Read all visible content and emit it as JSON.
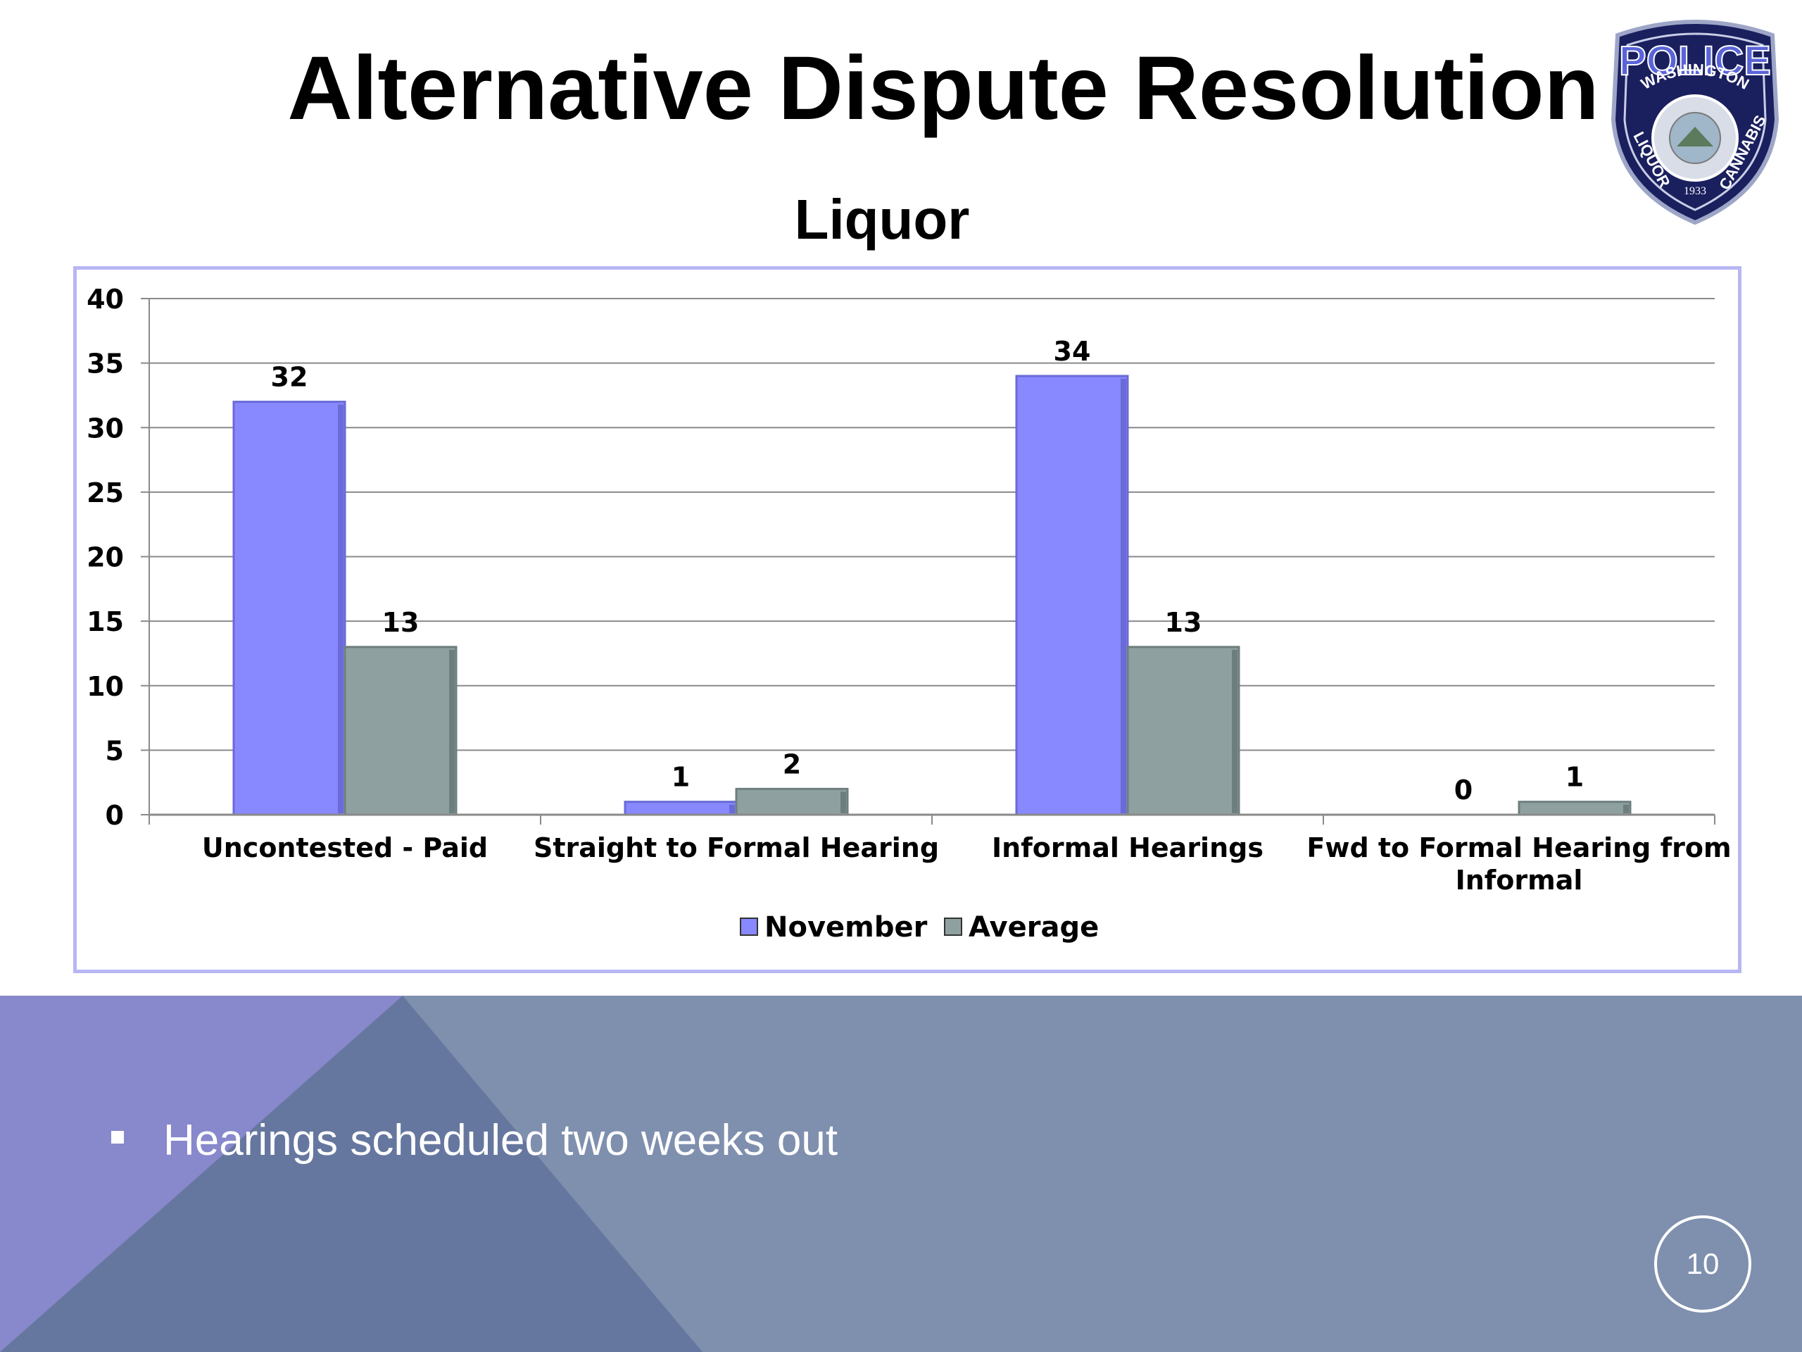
{
  "slide": {
    "title": "Alternative Dispute Resolution",
    "bullet": "Hearings scheduled two weeks out",
    "page_number": "10"
  },
  "logo": {
    "top_text": "POLICE",
    "band_text": "WASHINGTON",
    "left_text": "LIQUOR",
    "right_text": "CANNABIS",
    "year": "1933",
    "icon": "police-badge-icon"
  },
  "colors": {
    "november": "#8888ff",
    "average": "#8fa0a0",
    "frame": "#b7b7f4",
    "footer": "#7f8fae",
    "footer_left_triangle": "#8888cc",
    "footer_center_triangle": "#66779f"
  },
  "chart_data": {
    "type": "bar",
    "title": "Liquor",
    "categories": [
      "Uncontested - Paid",
      "Straight to Formal Hearing",
      "Informal Hearings",
      "Fwd to Formal Hearing from Informal"
    ],
    "series": [
      {
        "name": "November",
        "values": [
          32,
          1,
          34,
          0
        ]
      },
      {
        "name": "Average",
        "values": [
          13,
          2,
          13,
          1
        ]
      }
    ],
    "ylim": [
      0,
      40
    ],
    "yticks": [
      0,
      5,
      10,
      15,
      20,
      25,
      30,
      35,
      40
    ],
    "grid": true,
    "legend": "bottom",
    "data_labels": true
  }
}
